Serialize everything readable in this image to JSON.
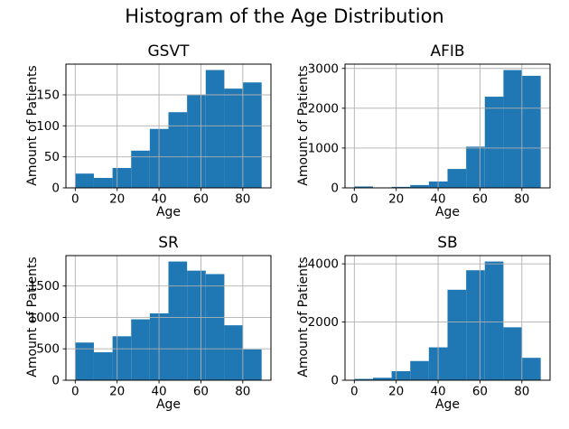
{
  "figure": {
    "title": "Histogram of the Age Distribution",
    "background": "#ffffff"
  },
  "style": {
    "bar_color": "#1f77b4",
    "grid_color": "#b0b0b0",
    "axis_color": "#000000",
    "text_color": "#000000"
  },
  "chart_data": [
    {
      "type": "bar",
      "subtype": "histogram",
      "title": "GSVT",
      "xlabel": "Age",
      "ylabel": "Amount of Patients",
      "bin_edges": [
        0,
        8.9,
        17.8,
        26.7,
        35.6,
        44.5,
        53.4,
        62.3,
        71.2,
        80.1,
        89
      ],
      "values": [
        23,
        16,
        32,
        60,
        95,
        122,
        150,
        190,
        160,
        170
      ],
      "xticks": [
        0,
        20,
        40,
        60,
        80
      ],
      "yticks": [
        0,
        50,
        100,
        150
      ],
      "xlim": [
        -4.45,
        93.45
      ],
      "ylim": [
        0,
        199.5
      ],
      "grid": true,
      "legend": false
    },
    {
      "type": "bar",
      "subtype": "histogram",
      "title": "AFIB",
      "xlabel": "Age",
      "ylabel": "Amount of Patients",
      "bin_edges": [
        0,
        8.9,
        17.8,
        26.7,
        35.6,
        44.5,
        53.4,
        62.3,
        71.2,
        80.1,
        89
      ],
      "values": [
        35,
        10,
        25,
        70,
        160,
        475,
        1035,
        2290,
        2960,
        2815
      ],
      "xticks": [
        0,
        20,
        40,
        60,
        80
      ],
      "yticks": [
        0,
        1000,
        2000,
        3000
      ],
      "xlim": [
        -4.45,
        93.45
      ],
      "ylim": [
        0,
        3108
      ],
      "grid": true,
      "legend": false
    },
    {
      "type": "bar",
      "subtype": "histogram",
      "title": "SR",
      "xlabel": "Age",
      "ylabel": "Amount of Patients",
      "bin_edges": [
        0,
        8.9,
        17.8,
        26.7,
        35.6,
        44.5,
        53.4,
        62.3,
        71.2,
        80.1,
        89
      ],
      "values": [
        600,
        445,
        700,
        970,
        1065,
        1890,
        1745,
        1690,
        875,
        490
      ],
      "xticks": [
        0,
        20,
        40,
        60,
        80
      ],
      "yticks": [
        0,
        500,
        1000,
        1500
      ],
      "xlim": [
        -4.45,
        93.45
      ],
      "ylim": [
        0,
        1984.5
      ],
      "grid": true,
      "legend": false
    },
    {
      "type": "bar",
      "subtype": "histogram",
      "title": "SB",
      "xlabel": "Age",
      "ylabel": "Amount of Patients",
      "bin_edges": [
        0,
        8.9,
        17.8,
        26.7,
        35.6,
        44.5,
        53.4,
        62.3,
        71.2,
        80.1,
        89
      ],
      "values": [
        45,
        85,
        310,
        660,
        1130,
        3110,
        3780,
        4080,
        1820,
        770
      ],
      "xticks": [
        0,
        20,
        40,
        60,
        80
      ],
      "yticks": [
        0,
        2000,
        4000
      ],
      "xlim": [
        -4.45,
        93.45
      ],
      "ylim": [
        0,
        4284
      ],
      "grid": true,
      "legend": false
    }
  ]
}
